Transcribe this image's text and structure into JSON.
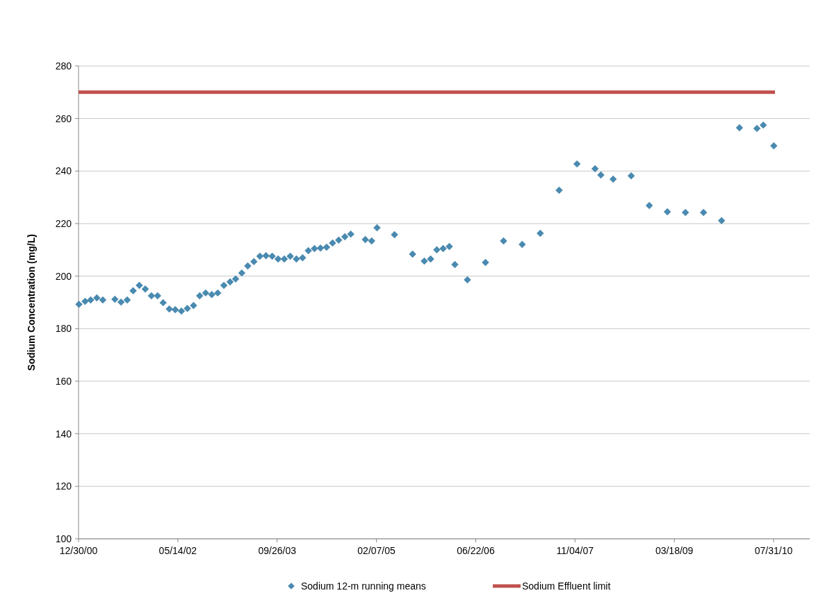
{
  "chart_data": {
    "type": "scatter",
    "ylabel": "Sodium Concentration (mg/L)",
    "xlim": [
      "2000-12-30",
      "2011-01-29"
    ],
    "xticks": [
      {
        "value": "2000-12-30",
        "label": "12/30/00"
      },
      {
        "value": "2002-05-14",
        "label": "05/14/02"
      },
      {
        "value": "2003-09-26",
        "label": "09/26/03"
      },
      {
        "value": "2005-02-07",
        "label": "02/07/05"
      },
      {
        "value": "2006-06-22",
        "label": "06/22/06"
      },
      {
        "value": "2007-11-04",
        "label": "11/04/07"
      },
      {
        "value": "2009-03-18",
        "label": "03/18/09"
      },
      {
        "value": "2010-07-31",
        "label": "07/31/10"
      }
    ],
    "ylim": [
      100,
      280
    ],
    "yticks": [
      100,
      120,
      140,
      160,
      180,
      200,
      220,
      240,
      260,
      280
    ],
    "grid": "y",
    "legend": "bottom",
    "marker": "diamond",
    "series": [
      {
        "name": "Sodium 12-m running means",
        "color": "#4a8ab0",
        "x": [
          "2001-01",
          "2001-02",
          "2001-03",
          "2001-04",
          "2001-05",
          "2001-07",
          "2001-08",
          "2001-09",
          "2001-10",
          "2001-11",
          "2001-12",
          "2002-01",
          "2002-02",
          "2002-03",
          "2002-04",
          "2002-05",
          "2002-06",
          "2002-07",
          "2002-08",
          "2002-09",
          "2002-10",
          "2002-11",
          "2002-12",
          "2003-01",
          "2003-02",
          "2003-03",
          "2003-04",
          "2003-05",
          "2003-06",
          "2003-07",
          "2003-08",
          "2003-09",
          "2003-10",
          "2003-11",
          "2003-12",
          "2004-01",
          "2004-02",
          "2004-03",
          "2004-04",
          "2004-05",
          "2004-06",
          "2004-07",
          "2004-08",
          "2004-09",
          "2004-10",
          "2004-12-13",
          "2005-01-14",
          "2005-02-10",
          "2005-05-09",
          "2005-08-08",
          "2005-10-06",
          "2005-11-07",
          "2005-12-08",
          "2006-01-09",
          "2006-02-09",
          "2006-03-09",
          "2006-05-11",
          "2006-08-10",
          "2006-11-09",
          "2007-02-11",
          "2007-05-13",
          "2007-08-16",
          "2007-11-14",
          "2008-02-13",
          "2008-03-13",
          "2008-05-14",
          "2008-08-13",
          "2008-11-12",
          "2009-02-11",
          "2009-05-13",
          "2009-08-12",
          "2009-11-11",
          "2010-02-09",
          "2010-05-08",
          "2010-06-09",
          "2010-08-01"
        ],
        "values": [
          189.3,
          190.4,
          190.9,
          191.7,
          190.9,
          191.2,
          190.1,
          190.9,
          194.4,
          196.5,
          195.1,
          192.5,
          192.5,
          189.9,
          187.5,
          187.2,
          186.7,
          187.7,
          188.8,
          192.5,
          193.6,
          193.0,
          193.6,
          196.5,
          197.8,
          198.9,
          201.2,
          203.9,
          205.5,
          207.6,
          207.8,
          207.6,
          206.5,
          206.5,
          207.6,
          206.5,
          207.0,
          209.7,
          210.5,
          210.7,
          211.0,
          212.6,
          213.7,
          215.0,
          216.0,
          213.9,
          213.4,
          218.4,
          215.8,
          208.4,
          205.7,
          206.5,
          210.0,
          210.5,
          211.3,
          204.4,
          198.6,
          205.2,
          213.4,
          212.1,
          216.3,
          232.7,
          242.7,
          240.9,
          238.5,
          236.9,
          238.2,
          226.9,
          224.5,
          224.2,
          224.2,
          221.1,
          256.5,
          256.2,
          257.5,
          249.6
        ]
      },
      {
        "name": "Sodium Effluent limit",
        "type": "line",
        "color": "#c0504d",
        "marker": "none",
        "x": [
          "2000-12-30",
          "2010-08-07"
        ],
        "values": [
          270,
          270
        ]
      }
    ]
  }
}
